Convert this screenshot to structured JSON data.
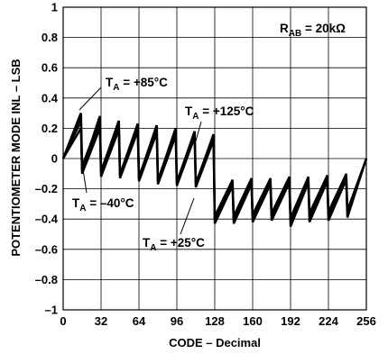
{
  "chart_data": {
    "type": "line",
    "xlabel": "CODE – Decimal",
    "ylabel": "POTENTIOMETER MODE INL – LSB",
    "xlim": [
      0,
      256
    ],
    "ylim": [
      -1,
      1
    ],
    "x_ticks": [
      0,
      32,
      64,
      96,
      128,
      160,
      192,
      224,
      256
    ],
    "y_ticks": [
      1,
      0.8,
      0.6,
      0.4,
      0.2,
      0,
      -0.2,
      -0.4,
      -0.6,
      -0.8,
      -1
    ],
    "x_tick_labels": [
      "0",
      "32",
      "64",
      "96",
      "128",
      "160",
      "192",
      "224",
      "256"
    ],
    "y_tick_labels": [
      "1",
      "0.8",
      "0.6",
      "0.4",
      "0.2",
      "0",
      "–0.2",
      "–0.4",
      "–0.6",
      "–0.8",
      "–1"
    ],
    "grid": true,
    "condition_label": {
      "main": "R",
      "sub": "AB",
      "rest": " = 20kΩ"
    },
    "series": [
      {
        "name": "TA = +85°C",
        "x": [
          0,
          15,
          16,
          31,
          32,
          47,
          48,
          63,
          64,
          79,
          80,
          95,
          96,
          111,
          112,
          127,
          128,
          143,
          144,
          159,
          160,
          175,
          176,
          191,
          192,
          207,
          208,
          223,
          224,
          239,
          240,
          256
        ],
        "y": [
          0,
          0.3,
          -0.08,
          0.28,
          -0.09,
          0.25,
          -0.11,
          0.23,
          -0.13,
          0.22,
          -0.15,
          0.2,
          -0.16,
          0.18,
          -0.17,
          0.16,
          -0.4,
          -0.15,
          -0.4,
          -0.14,
          -0.39,
          -0.14,
          -0.38,
          -0.13,
          -0.41,
          -0.13,
          -0.38,
          -0.12,
          -0.37,
          -0.11,
          -0.36,
          0
        ]
      },
      {
        "name": "TA = +125°C",
        "x": [
          0,
          15,
          16,
          31,
          32,
          47,
          48,
          63,
          64,
          79,
          80,
          95,
          96,
          111,
          112,
          127,
          128,
          143,
          144,
          159,
          160,
          175,
          176,
          191,
          192,
          207,
          208,
          223,
          224,
          239,
          240,
          256
        ],
        "y": [
          0,
          0.27,
          -0.05,
          0.26,
          -0.08,
          0.24,
          -0.1,
          0.22,
          -0.12,
          0.21,
          -0.14,
          0.19,
          -0.15,
          0.17,
          -0.16,
          0.15,
          -0.38,
          -0.14,
          -0.38,
          -0.13,
          -0.37,
          -0.13,
          -0.36,
          -0.12,
          -0.39,
          -0.12,
          -0.36,
          -0.11,
          -0.35,
          -0.1,
          -0.34,
          0
        ]
      },
      {
        "name": "TA = –40°C",
        "x": [
          0,
          15,
          16,
          31,
          32,
          47,
          48,
          63,
          64,
          79,
          80,
          95,
          96,
          111,
          112,
          127,
          128,
          143,
          144,
          159,
          160,
          175,
          176,
          191,
          192,
          207,
          208,
          223,
          224,
          239,
          240,
          256
        ],
        "y": [
          0,
          0.2,
          -0.1,
          0.2,
          -0.12,
          0.19,
          -0.13,
          0.18,
          -0.15,
          0.17,
          -0.17,
          0.15,
          -0.18,
          0.14,
          -0.19,
          0.12,
          -0.43,
          -0.18,
          -0.43,
          -0.17,
          -0.42,
          -0.17,
          -0.41,
          -0.16,
          -0.45,
          -0.16,
          -0.42,
          -0.15,
          -0.41,
          -0.14,
          -0.39,
          0
        ]
      },
      {
        "name": "TA = +25°C",
        "x": [
          0,
          15,
          16,
          31,
          32,
          47,
          48,
          63,
          64,
          79,
          80,
          95,
          96,
          111,
          112,
          127,
          128,
          143,
          144,
          159,
          160,
          175,
          176,
          191,
          192,
          207,
          208,
          223,
          224,
          239,
          240,
          256
        ],
        "y": [
          0,
          0.24,
          -0.07,
          0.23,
          -0.1,
          0.21,
          -0.12,
          0.2,
          -0.14,
          0.19,
          -0.16,
          0.17,
          -0.17,
          0.16,
          -0.18,
          0.14,
          -0.41,
          -0.16,
          -0.41,
          -0.15,
          -0.4,
          -0.15,
          -0.39,
          -0.14,
          -0.43,
          -0.14,
          -0.4,
          -0.13,
          -0.39,
          -0.12,
          -0.37,
          0
        ]
      }
    ],
    "annotations": [
      {
        "main": "T",
        "sub": "A",
        "rest": " = +85°C"
      },
      {
        "main": "T",
        "sub": "A",
        "rest": " = +125°C"
      },
      {
        "main": "T",
        "sub": "A",
        "rest": " = –40°C"
      },
      {
        "main": "T",
        "sub": "A",
        "rest": " = +25°C"
      }
    ],
    "line_color": "#000000",
    "grid_color": "#000000"
  }
}
